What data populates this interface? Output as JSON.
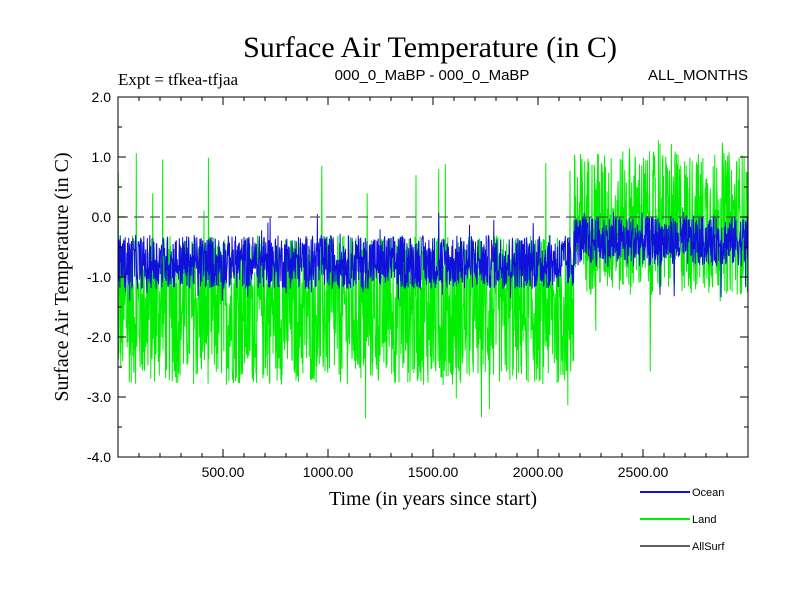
{
  "chart_data": {
    "type": "line",
    "title": "Surface Air Temperature (in C)",
    "subtitle_left": "Expt = tfkea-tfjaa",
    "subtitle_center": "000_0_MaBP - 000_0_MaBP",
    "subtitle_right": "ALL_MONTHS",
    "xlabel": "Time (in years since start)",
    "ylabel": "Surface Air Temperature (in C)",
    "xlim": [
      0,
      3000
    ],
    "ylim": [
      -4.0,
      2.0
    ],
    "xticks": [
      500,
      1000,
      1500,
      2000,
      2500
    ],
    "xtick_labels": [
      "500.00",
      "1000.00",
      "1500.00",
      "2000.00",
      "2500.00"
    ],
    "yticks": [
      2.0,
      1.0,
      0.0,
      -1.0,
      -2.0,
      -3.0,
      -4.0
    ],
    "ytick_labels": [
      "2.0",
      "1.0",
      "0.0",
      "-1.0",
      "-2.0",
      "-3.0",
      "-4.0"
    ],
    "reference_line": {
      "y": 0.0,
      "style": "dashed",
      "color": "#555555"
    },
    "legend_position": "bottom-right",
    "series": [
      {
        "name": "Land",
        "color": "#00ee00",
        "segments": [
          {
            "x_start": 0,
            "x_end": 2170,
            "mean": -1.55,
            "low": -2.9,
            "high": -0.4
          },
          {
            "x_start": 2170,
            "x_end": 3000,
            "mean": -0.1,
            "low": -1.4,
            "high": 1.0
          }
        ],
        "extremes": {
          "min": -3.5,
          "max": 1.3
        }
      },
      {
        "name": "Ocean",
        "color": "#1010dd",
        "segments": [
          {
            "x_start": 0,
            "x_end": 2170,
            "mean": -0.75,
            "low": -1.2,
            "high": -0.3
          },
          {
            "x_start": 2170,
            "x_end": 3000,
            "mean": -0.4,
            "low": -0.8,
            "high": 0.05
          }
        ],
        "extremes": {
          "min": -1.4,
          "max": 0.1
        }
      },
      {
        "name": "AllSurf",
        "color": "#000000",
        "segments": []
      }
    ]
  }
}
